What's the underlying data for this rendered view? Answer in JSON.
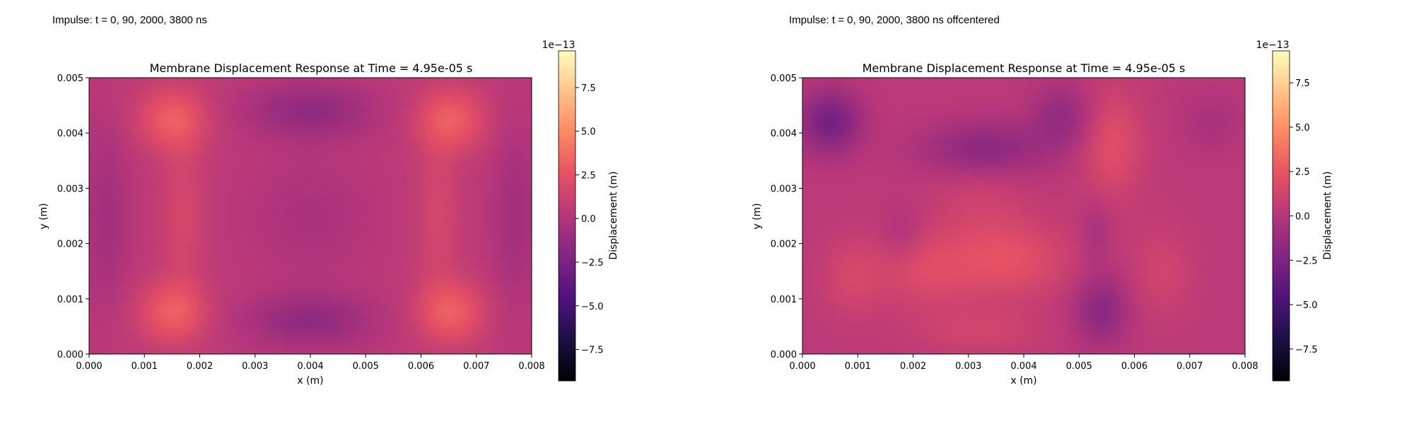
{
  "captions": [
    "Impulse: t = 0, 90, 2000, 3800 ns",
    "Impulse: t = 0, 90, 2000, 3800 ns offcentered"
  ],
  "colors": {
    "colormap": "magma",
    "stops": [
      "#000004",
      "#1c1044",
      "#4f127b",
      "#812581",
      "#b5367a",
      "#e55064",
      "#fb8761",
      "#fec287",
      "#fcfdbf"
    ]
  },
  "chart_data": [
    {
      "type": "heatmap",
      "title": "Membrane Displacement Response at Time = 4.95e-05 s",
      "xlabel": "x (m)",
      "ylabel": "y (m)",
      "xlim": [
        0,
        0.008
      ],
      "ylim": [
        0,
        0.005
      ],
      "xticks": [
        "0.000",
        "0.001",
        "0.002",
        "0.003",
        "0.004",
        "0.005",
        "0.006",
        "0.007",
        "0.008"
      ],
      "yticks": [
        "0.000",
        "0.001",
        "0.002",
        "0.003",
        "0.004",
        "0.005"
      ],
      "colorbar": {
        "label": "Displacement (m)",
        "offset_text": "1e−13",
        "range": [
          -9.3,
          9.6
        ],
        "ticks": [
          -7.5,
          -5.0,
          -2.5,
          0.0,
          2.5,
          5.0,
          7.5
        ],
        "tick_labels": [
          "−7.5",
          "−5.0",
          "−2.5",
          "0.0",
          "2.5",
          "5.0",
          "7.5"
        ]
      },
      "baseline": 0.5,
      "features": [
        {
          "x": 0.0015,
          "y": 0.00425,
          "sx": 0.00045,
          "sy": 0.0004,
          "a": 2.6
        },
        {
          "x": 0.00655,
          "y": 0.00425,
          "sx": 0.00045,
          "sy": 0.0004,
          "a": 2.6
        },
        {
          "x": 0.0015,
          "y": 0.00075,
          "sx": 0.00045,
          "sy": 0.0004,
          "a": 2.6
        },
        {
          "x": 0.00655,
          "y": 0.00075,
          "sx": 0.00045,
          "sy": 0.0004,
          "a": 2.6
        },
        {
          "x": 0.004,
          "y": 0.0044,
          "sx": 0.0008,
          "sy": 0.00035,
          "a": -2.0
        },
        {
          "x": 0.004,
          "y": 0.0006,
          "sx": 0.0008,
          "sy": 0.00035,
          "a": -2.0
        },
        {
          "x": 0.004,
          "y": 0.0025,
          "sx": 0.0008,
          "sy": 0.0008,
          "a": -0.8
        },
        {
          "x": 0.0017,
          "y": 0.0025,
          "sx": 0.0003,
          "sy": 0.001,
          "a": 1.2
        },
        {
          "x": 0.0063,
          "y": 0.0025,
          "sx": 0.0003,
          "sy": 0.001,
          "a": 1.2
        },
        {
          "x": 0.0003,
          "y": 0.0025,
          "sx": 0.0003,
          "sy": 0.0012,
          "a": -1.2
        },
        {
          "x": 0.0077,
          "y": 0.0025,
          "sx": 0.0003,
          "sy": 0.0012,
          "a": -1.2
        }
      ]
    },
    {
      "type": "heatmap",
      "title": "Membrane Displacement Response at Time = 4.95e-05 s",
      "xlabel": "x (m)",
      "ylabel": "y (m)",
      "xlim": [
        0,
        0.008
      ],
      "ylim": [
        0,
        0.005
      ],
      "xticks": [
        "0.000",
        "0.001",
        "0.002",
        "0.003",
        "0.004",
        "0.005",
        "0.006",
        "0.007",
        "0.008"
      ],
      "yticks": [
        "0.000",
        "0.001",
        "0.002",
        "0.003",
        "0.004",
        "0.005"
      ],
      "colorbar": {
        "label": "Displacement (m)",
        "offset_text": "1e−13",
        "range": [
          -9.3,
          9.3
        ],
        "ticks": [
          -7.5,
          -5.0,
          -2.5,
          0.0,
          2.5,
          5.0,
          7.5
        ],
        "tick_labels": [
          "−7.5",
          "−5.0",
          "−2.5",
          "0.0",
          "2.5",
          "5.0",
          "7.5"
        ]
      },
      "baseline": 0.3,
      "features": [
        {
          "x": 0.0005,
          "y": 0.0042,
          "sx": 0.0004,
          "sy": 0.0004,
          "a": -3.2
        },
        {
          "x": 0.0033,
          "y": 0.0037,
          "sx": 0.0008,
          "sy": 0.00035,
          "a": -2.2
        },
        {
          "x": 0.0047,
          "y": 0.0043,
          "sx": 0.0004,
          "sy": 0.0004,
          "a": -1.8
        },
        {
          "x": 0.0054,
          "y": 0.0008,
          "sx": 0.00035,
          "sy": 0.00045,
          "a": -2.2
        },
        {
          "x": 0.0053,
          "y": 0.0022,
          "sx": 0.0002,
          "sy": 0.0004,
          "a": -1.0
        },
        {
          "x": 0.0018,
          "y": 0.0022,
          "sx": 0.00025,
          "sy": 0.00035,
          "a": -0.8
        },
        {
          "x": 0.0037,
          "y": 0.0017,
          "sx": 0.0008,
          "sy": 0.0005,
          "a": 2.0
        },
        {
          "x": 0.0022,
          "y": 0.0015,
          "sx": 0.0006,
          "sy": 0.0005,
          "a": 1.4
        },
        {
          "x": 0.0056,
          "y": 0.0038,
          "sx": 0.0004,
          "sy": 0.0007,
          "a": 1.8
        },
        {
          "x": 0.0009,
          "y": 0.0014,
          "sx": 0.0004,
          "sy": 0.0005,
          "a": 1.2
        },
        {
          "x": 0.0032,
          "y": 0.0004,
          "sx": 0.0008,
          "sy": 0.0003,
          "a": 1.0
        },
        {
          "x": 0.0065,
          "y": 0.0015,
          "sx": 0.0004,
          "sy": 0.0006,
          "a": 1.0
        },
        {
          "x": 0.0074,
          "y": 0.0042,
          "sx": 0.0004,
          "sy": 0.0004,
          "a": -0.8
        },
        {
          "x": 0.0032,
          "y": 0.0028,
          "sx": 0.0006,
          "sy": 0.0005,
          "a": 0.8
        }
      ]
    }
  ]
}
